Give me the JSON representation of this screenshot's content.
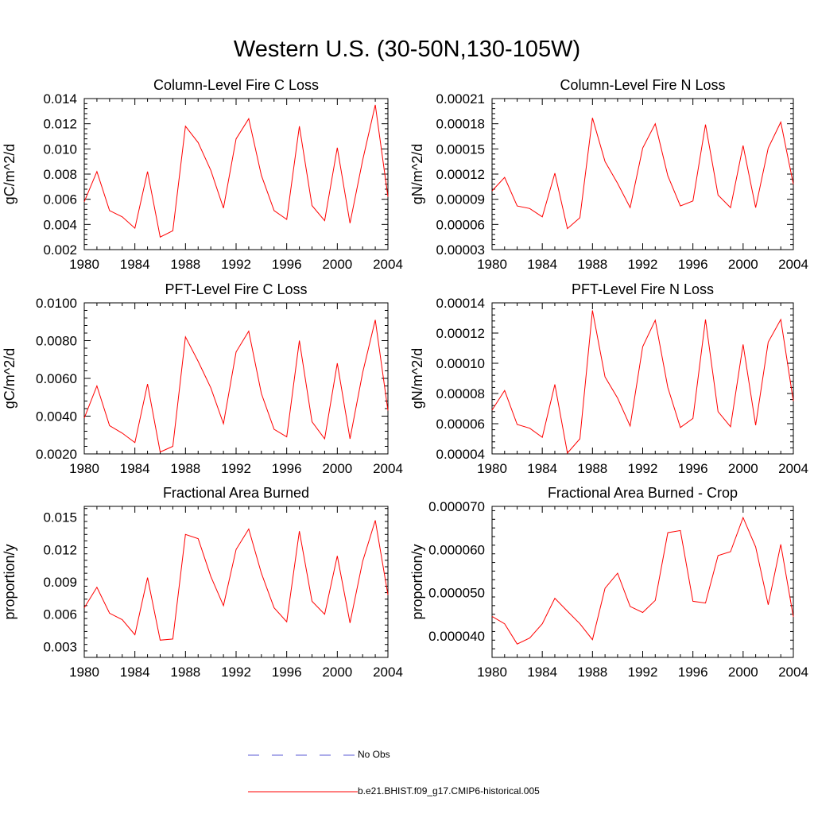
{
  "figure": {
    "title": "Western U.S. (30-50N,130-105W)"
  },
  "legend": {
    "items": [
      {
        "label": "No Obs",
        "color": "#5a5ad6",
        "dash": true
      },
      {
        "label": "b.e21.BHIST.f09_g17.CMIP6-historical.005",
        "color": "#ff0000",
        "dash": false
      }
    ]
  },
  "chart_data": [
    {
      "type": "line",
      "title": "Column-Level Fire C Loss",
      "ylabel": "gC/m^2/d",
      "xlim": [
        1980,
        2004
      ],
      "ylim": [
        0.002,
        0.014
      ],
      "xticks": [
        1980,
        1984,
        1988,
        1992,
        1996,
        2000,
        2004
      ],
      "yticks": [
        0.002,
        0.004,
        0.006,
        0.008,
        0.01,
        0.012,
        0.014
      ],
      "ytick_labels": [
        "0.002",
        "0.004",
        "0.006",
        "0.008",
        "0.010",
        "0.012",
        "0.014"
      ],
      "series": [
        {
          "name": "b.e21.BHIST.f09_g17.CMIP6-historical.005",
          "color": "#ff0000",
          "x": [
            1980,
            1981,
            1982,
            1983,
            1984,
            1985,
            1986,
            1987,
            1988,
            1989,
            1990,
            1991,
            1992,
            1993,
            1994,
            1995,
            1996,
            1997,
            1998,
            1999,
            2000,
            2001,
            2002,
            2003,
            2004
          ],
          "y": [
            0.0058,
            0.0082,
            0.0051,
            0.0046,
            0.0037,
            0.0082,
            0.003,
            0.0035,
            0.0118,
            0.0105,
            0.0083,
            0.0053,
            0.0108,
            0.0124,
            0.0079,
            0.0051,
            0.0044,
            0.0118,
            0.0055,
            0.0043,
            0.0101,
            0.0041,
            0.0091,
            0.0135,
            0.0062
          ]
        }
      ]
    },
    {
      "type": "line",
      "title": "Column-Level Fire N Loss",
      "ylabel": "gN/m^2/d",
      "xlim": [
        1980,
        2004
      ],
      "ylim": [
        3e-05,
        0.00021
      ],
      "xticks": [
        1980,
        1984,
        1988,
        1992,
        1996,
        2000,
        2004
      ],
      "yticks": [
        3e-05,
        6e-05,
        9e-05,
        0.00012,
        0.00015,
        0.00018,
        0.00021
      ],
      "ytick_labels": [
        "0.00003",
        "0.00006",
        "0.00009",
        "0.00012",
        "0.00015",
        "0.00018",
        "0.00021"
      ],
      "series": [
        {
          "name": "b.e21.BHIST.f09_g17.CMIP6-historical.005",
          "color": "#ff0000",
          "x": [
            1980,
            1981,
            1982,
            1983,
            1984,
            1985,
            1986,
            1987,
            1988,
            1989,
            1990,
            1991,
            1992,
            1993,
            1994,
            1995,
            1996,
            1997,
            1998,
            1999,
            2000,
            2001,
            2002,
            2003,
            2004
          ],
          "y": [
            0.0001,
            0.000116,
            8.2e-05,
            7.9e-05,
            6.9e-05,
            0.000121,
            5.5e-05,
            6.8e-05,
            0.000187,
            0.000135,
            0.000109,
            8e-05,
            0.000151,
            0.00018,
            0.000118,
            8.2e-05,
            8.8e-05,
            0.000179,
            9.5e-05,
            8e-05,
            0.000154,
            8e-05,
            0.000151,
            0.000182,
            0.000108
          ]
        }
      ]
    },
    {
      "type": "line",
      "title": "PFT-Level Fire C Loss",
      "ylabel": "gC/m^2/d",
      "xlim": [
        1980,
        2004
      ],
      "ylim": [
        0.002,
        0.01
      ],
      "xticks": [
        1980,
        1984,
        1988,
        1992,
        1996,
        2000,
        2004
      ],
      "yticks": [
        0.002,
        0.004,
        0.006,
        0.008,
        0.01
      ],
      "ytick_labels": [
        "0.0020",
        "0.0040",
        "0.0060",
        "0.0080",
        "0.0100"
      ],
      "series": [
        {
          "name": "b.e21.BHIST.f09_g17.CMIP6-historical.005",
          "color": "#ff0000",
          "x": [
            1980,
            1981,
            1982,
            1983,
            1984,
            1985,
            1986,
            1987,
            1988,
            1989,
            1990,
            1991,
            1992,
            1993,
            1994,
            1995,
            1996,
            1997,
            1998,
            1999,
            2000,
            2001,
            2002,
            2003,
            2004
          ],
          "y": [
            0.0039,
            0.0056,
            0.0035,
            0.0031,
            0.0026,
            0.0057,
            0.0021,
            0.0024,
            0.0082,
            0.0069,
            0.0055,
            0.0036,
            0.0074,
            0.0085,
            0.0052,
            0.0033,
            0.0029,
            0.008,
            0.0037,
            0.0028,
            0.0068,
            0.0028,
            0.0063,
            0.0091,
            0.0043
          ]
        }
      ]
    },
    {
      "type": "line",
      "title": "PFT-Level Fire N Loss",
      "ylabel": "gN/m^2/d",
      "xlim": [
        1980,
        2004
      ],
      "ylim": [
        4e-05,
        0.00014
      ],
      "xticks": [
        1980,
        1984,
        1988,
        1992,
        1996,
        2000,
        2004
      ],
      "yticks": [
        4e-05,
        6e-05,
        8e-05,
        0.0001,
        0.00012,
        0.00014
      ],
      "ytick_labels": [
        "0.00004",
        "0.00006",
        "0.00008",
        "0.00010",
        "0.00012",
        "0.00014"
      ],
      "series": [
        {
          "name": "b.e21.BHIST.f09_g17.CMIP6-historical.005",
          "color": "#ff0000",
          "x": [
            1980,
            1981,
            1982,
            1983,
            1984,
            1985,
            1986,
            1987,
            1988,
            1989,
            1990,
            1991,
            1992,
            1993,
            1994,
            1995,
            1996,
            1997,
            1998,
            1999,
            2000,
            2001,
            2002,
            2003,
            2004
          ],
          "y": [
            6.9e-05,
            8.2e-05,
            5.95e-05,
            5.7e-05,
            5.1e-05,
            8.6e-05,
            4.05e-05,
            5e-05,
            0.000135,
            9.1e-05,
            7.7e-05,
            5.85e-05,
            0.000111,
            0.0001285,
            8.4e-05,
            5.75e-05,
            6.35e-05,
            0.000129,
            6.8e-05,
            5.8e-05,
            0.0001125,
            5.9e-05,
            0.000114,
            0.000129,
            7.5e-05
          ]
        }
      ]
    },
    {
      "type": "line",
      "title": "Fractional Area Burned",
      "ylabel": "proportion/y",
      "xlim": [
        1980,
        2004
      ],
      "ylim": [
        0.002,
        0.016
      ],
      "xticks": [
        1980,
        1984,
        1988,
        1992,
        1996,
        2000,
        2004
      ],
      "yticks": [
        0.003,
        0.006,
        0.009,
        0.012,
        0.015
      ],
      "ytick_labels": [
        "0.003",
        "0.006",
        "0.009",
        "0.012",
        "0.015"
      ],
      "series": [
        {
          "name": "b.e21.BHIST.f09_g17.CMIP6-historical.005",
          "color": "#ff0000",
          "x": [
            1980,
            1981,
            1982,
            1983,
            1984,
            1985,
            1986,
            1987,
            1988,
            1989,
            1990,
            1991,
            1992,
            1993,
            1994,
            1995,
            1996,
            1997,
            1998,
            1999,
            2000,
            2001,
            2002,
            2003,
            2004
          ],
          "y": [
            0.0066,
            0.0085,
            0.0061,
            0.0055,
            0.0041,
            0.0094,
            0.0036,
            0.0037,
            0.0134,
            0.013,
            0.0095,
            0.0068,
            0.012,
            0.0139,
            0.0098,
            0.0066,
            0.0053,
            0.0137,
            0.0072,
            0.006,
            0.0114,
            0.0052,
            0.0109,
            0.0147,
            0.0078
          ]
        }
      ]
    },
    {
      "type": "line",
      "title": "Fractional Area Burned - Crop",
      "ylabel": "proportion/y",
      "xlim": [
        1980,
        2004
      ],
      "ylim": [
        3.5e-05,
        7e-05
      ],
      "xticks": [
        1980,
        1984,
        1988,
        1992,
        1996,
        2000,
        2004
      ],
      "yticks": [
        4e-05,
        5e-05,
        6e-05,
        7e-05
      ],
      "ytick_labels": [
        "0.000040",
        "0.000050",
        "0.000060",
        "0.000070"
      ],
      "series": [
        {
          "name": "b.e21.BHIST.f09_g17.CMIP6-historical.005",
          "color": "#ff0000",
          "x": [
            1980,
            1981,
            1982,
            1983,
            1984,
            1985,
            1986,
            1987,
            1988,
            1989,
            1990,
            1991,
            1992,
            1993,
            1994,
            1995,
            1996,
            1997,
            1998,
            1999,
            2000,
            2001,
            2002,
            2003,
            2004
          ],
          "y": [
            4.45e-05,
            4.28e-05,
            3.81e-05,
            3.95e-05,
            4.28e-05,
            4.87e-05,
            4.57e-05,
            4.28e-05,
            3.91e-05,
            5.1e-05,
            5.45e-05,
            4.68e-05,
            4.54e-05,
            4.82e-05,
            6.39e-05,
            6.44e-05,
            4.8e-05,
            4.76e-05,
            5.86e-05,
            5.95e-05,
            6.74e-05,
            6.06e-05,
            4.72e-05,
            6.12e-05,
            4.44e-05
          ]
        }
      ]
    }
  ]
}
